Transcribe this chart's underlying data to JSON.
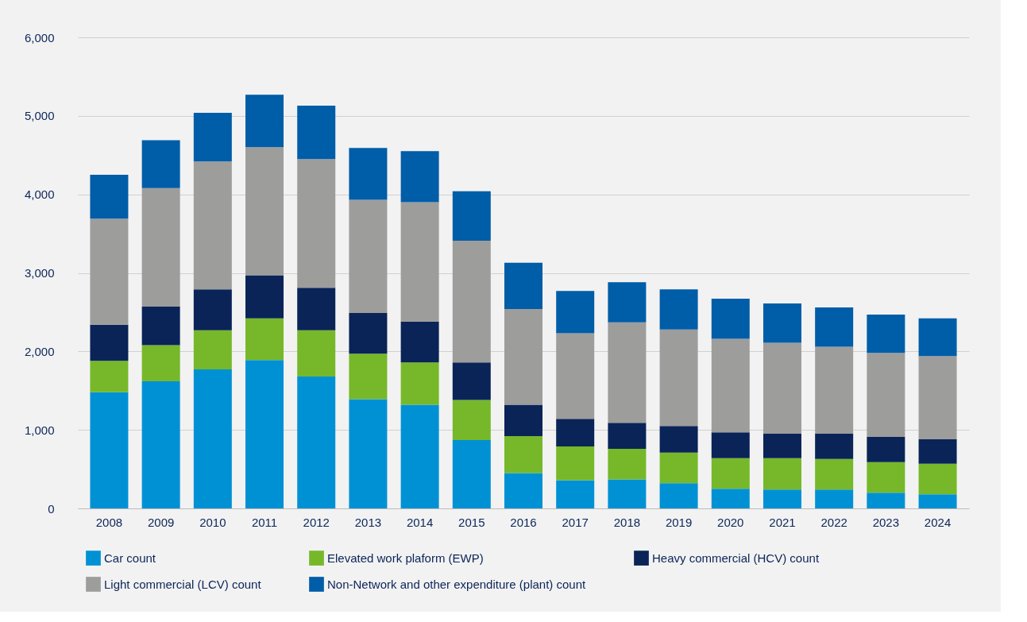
{
  "chart_data": {
    "type": "bar",
    "stacked": true,
    "categories": [
      "2008",
      "2009",
      "2010",
      "2011",
      "2012",
      "2013",
      "2014",
      "2015",
      "2016",
      "2017",
      "2018",
      "2019",
      "2020",
      "2021",
      "2022",
      "2023",
      "2024"
    ],
    "series": [
      {
        "name": "Car count",
        "color": "#0091d5",
        "values": [
          1480,
          1620,
          1770,
          1890,
          1680,
          1390,
          1320,
          870,
          450,
          360,
          370,
          320,
          250,
          240,
          240,
          200,
          180
        ]
      },
      {
        "name": "Elevated work plaform (EWP)",
        "color": "#76b82a",
        "values": [
          400,
          460,
          500,
          530,
          590,
          580,
          540,
          510,
          470,
          430,
          390,
          390,
          390,
          400,
          390,
          390,
          390
        ]
      },
      {
        "name": "Heavy commercial (HCV) count",
        "color": "#0a2458",
        "values": [
          460,
          490,
          520,
          550,
          540,
          520,
          520,
          480,
          400,
          350,
          330,
          340,
          330,
          310,
          320,
          320,
          310
        ]
      },
      {
        "name": "Light commercial (LCV) count",
        "color": "#9d9d9c",
        "values": [
          1350,
          1510,
          1630,
          1630,
          1640,
          1440,
          1520,
          1550,
          1220,
          1090,
          1280,
          1230,
          1190,
          1160,
          1110,
          1070,
          1060
        ]
      },
      {
        "name": "Non-Network and other expenditure (plant) count",
        "color": "#005da8",
        "values": [
          560,
          610,
          620,
          670,
          680,
          660,
          650,
          630,
          590,
          540,
          510,
          510,
          510,
          500,
          500,
          490,
          480
        ]
      }
    ],
    "ylim": [
      0,
      6000
    ],
    "yticks": [
      0,
      {
        "value": 1000,
        "label": "1,000"
      },
      {
        "value": 2000,
        "label": "2,000"
      },
      {
        "value": 3000,
        "label": "3,000"
      },
      {
        "value": 4000,
        "label": "4,000"
      },
      {
        "value": 5000,
        "label": "5,000"
      },
      {
        "value": 6000,
        "label": "6,000"
      }
    ],
    "grid": "y",
    "legend": "bottom"
  }
}
